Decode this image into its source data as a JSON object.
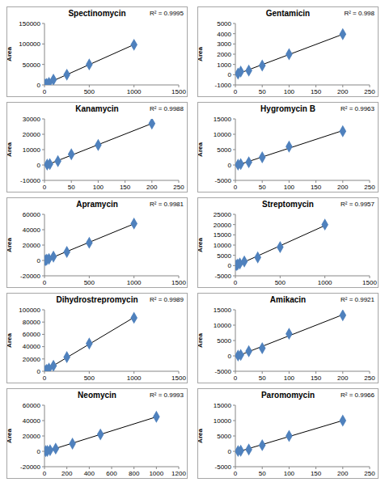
{
  "chart_data": [
    {
      "type": "scatter",
      "title": "Spectinomycin",
      "y_label": "Area",
      "annotation": "R² = 0.9995",
      "x": [
        5,
        10,
        25,
        50,
        100,
        250,
        500,
        1000
      ],
      "values": [
        500,
        1000,
        2500,
        5000,
        13000,
        25000,
        50000,
        98000
      ],
      "color": "#4f81bd",
      "marker": "diamond",
      "xlim": [
        0,
        1500
      ],
      "xticks": [
        0,
        500,
        1000,
        1500
      ],
      "ylim": [
        0,
        150000
      ],
      "yticks": [
        0,
        50000,
        100000,
        150000
      ]
    },
    {
      "type": "scatter",
      "title": "Gentamicin",
      "y_label": "Area",
      "annotation": "R² = 0.998",
      "x": [
        5,
        10,
        25,
        50,
        100,
        200
      ],
      "values": [
        100,
        300,
        400,
        900,
        2000,
        3950
      ],
      "color": "#4f81bd",
      "marker": "diamond",
      "xlim": [
        0,
        250
      ],
      "xticks": [
        0,
        50,
        100,
        150,
        200,
        250
      ],
      "ylim": [
        -1000,
        5000
      ],
      "yticks": [
        -1000,
        0,
        1000,
        2000,
        3000,
        4000,
        5000
      ]
    },
    {
      "type": "scatter",
      "title": "Kanamycin",
      "y_label": "Area",
      "annotation": "R² = 0.9988",
      "x": [
        5,
        10,
        25,
        50,
        100,
        200
      ],
      "values": [
        300,
        600,
        2500,
        7000,
        13000,
        27000
      ],
      "color": "#4f81bd",
      "marker": "diamond",
      "xlim": [
        0,
        250
      ],
      "xticks": [
        0,
        50,
        100,
        150,
        200,
        250
      ],
      "ylim": [
        -10000,
        30000
      ],
      "yticks": [
        -10000,
        0,
        10000,
        20000,
        30000
      ]
    },
    {
      "type": "scatter",
      "title": "Hygromycin B",
      "y_label": "Area",
      "annotation": "R² = 0.9963",
      "x": [
        5,
        10,
        25,
        50,
        100,
        200
      ],
      "values": [
        100,
        300,
        900,
        2500,
        6000,
        11000
      ],
      "color": "#4f81bd",
      "marker": "diamond",
      "xlim": [
        0,
        250
      ],
      "xticks": [
        0,
        50,
        100,
        150,
        200,
        250
      ],
      "ylim": [
        -5000,
        15000
      ],
      "yticks": [
        -5000,
        0,
        5000,
        10000,
        15000
      ]
    },
    {
      "type": "scatter",
      "title": "Apramycin",
      "y_label": "Area",
      "annotation": "R² = 0.9981",
      "x": [
        10,
        25,
        50,
        100,
        250,
        500,
        1000
      ],
      "values": [
        300,
        1000,
        2000,
        5000,
        11000,
        23000,
        48000
      ],
      "color": "#4f81bd",
      "marker": "diamond",
      "xlim": [
        0,
        1500
      ],
      "xticks": [
        0,
        500,
        1000,
        1500
      ],
      "ylim": [
        -20000,
        60000
      ],
      "yticks": [
        -20000,
        0,
        20000,
        40000,
        60000
      ]
    },
    {
      "type": "scatter",
      "title": "Streptomycin",
      "y_label": "Area",
      "annotation": "R² = 0.9957",
      "x": [
        10,
        25,
        50,
        100,
        250,
        500,
        1000
      ],
      "values": [
        200,
        500,
        1000,
        2000,
        4000,
        9000,
        20000
      ],
      "color": "#4f81bd",
      "marker": "diamond",
      "xlim": [
        0,
        1500
      ],
      "xticks": [
        0,
        500,
        1000,
        1500
      ],
      "ylim": [
        -5000,
        25000
      ],
      "yticks": [
        -5000,
        0,
        5000,
        10000,
        15000,
        20000,
        25000
      ]
    },
    {
      "type": "scatter",
      "title": "Dihydrostrepromycin",
      "y_label": "Area",
      "annotation": "R² = 0.9989",
      "x": [
        10,
        25,
        50,
        100,
        250,
        500,
        1000
      ],
      "values": [
        1000,
        2500,
        4500,
        9000,
        23000,
        45000,
        87000
      ],
      "color": "#4f81bd",
      "marker": "diamond",
      "xlim": [
        0,
        1500
      ],
      "xticks": [
        0,
        500,
        1000,
        1500
      ],
      "ylim": [
        0,
        100000
      ],
      "yticks": [
        0,
        20000,
        40000,
        60000,
        80000,
        100000
      ]
    },
    {
      "type": "scatter",
      "title": "Amikacin",
      "y_label": "Area",
      "annotation": "R² = 0.9921",
      "x": [
        5,
        10,
        25,
        50,
        100,
        200
      ],
      "values": [
        100,
        300,
        1500,
        2500,
        7200,
        13200
      ],
      "color": "#4f81bd",
      "marker": "diamond",
      "xlim": [
        0,
        250
      ],
      "xticks": [
        0,
        50,
        100,
        150,
        200,
        250
      ],
      "ylim": [
        -5000,
        15000
      ],
      "yticks": [
        -5000,
        0,
        5000,
        10000,
        15000
      ]
    },
    {
      "type": "scatter",
      "title": "Neomycin",
      "y_label": "Area",
      "annotation": "R² = 0.9993",
      "x": [
        10,
        25,
        50,
        100,
        250,
        500,
        1000
      ],
      "values": [
        200,
        500,
        1500,
        3500,
        10000,
        22000,
        45000
      ],
      "color": "#4f81bd",
      "marker": "diamond",
      "xlim": [
        0,
        1200
      ],
      "xticks": [
        0,
        200,
        400,
        600,
        800,
        1000,
        1200
      ],
      "ylim": [
        -20000,
        60000
      ],
      "yticks": [
        -20000,
        0,
        20000,
        40000,
        60000
      ]
    },
    {
      "type": "scatter",
      "title": "Paromomycin",
      "y_label": "Area",
      "annotation": "R² = 0.9966",
      "x": [
        5,
        10,
        25,
        50,
        100,
        200
      ],
      "values": [
        100,
        200,
        600,
        2000,
        5000,
        10000
      ],
      "color": "#4f81bd",
      "marker": "diamond",
      "xlim": [
        0,
        250
      ],
      "xticks": [
        0,
        50,
        100,
        150,
        200,
        250
      ],
      "ylim": [
        -5000,
        15000
      ],
      "yticks": [
        -5000,
        0,
        5000,
        10000,
        15000
      ]
    }
  ]
}
